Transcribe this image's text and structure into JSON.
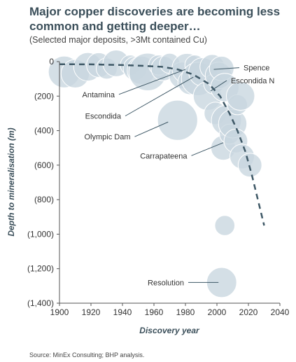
{
  "header": {
    "title": "Major copper discoveries are becoming less common and getting deeper…",
    "subtitle": "(Selected major deposits, >3Mt contained Cu)"
  },
  "footer": {
    "source": "Source: MinEx Consulting; BHP analysis."
  },
  "chart_data": {
    "type": "scatter",
    "xlabel": "Discovery year",
    "ylabel": "Depth to mineralisation (m)",
    "xlim": [
      1900,
      2040
    ],
    "ylim": [
      0,
      1400
    ],
    "y_inverted": true,
    "grid": false,
    "legend": "none",
    "x_ticks": [
      {
        "value": 1900,
        "label": "1900"
      },
      {
        "value": 1920,
        "label": "1920"
      },
      {
        "value": 1940,
        "label": "1940"
      },
      {
        "value": 1960,
        "label": "1960"
      },
      {
        "value": 1980,
        "label": "1980"
      },
      {
        "value": 2000,
        "label": "2000"
      },
      {
        "value": 2020,
        "label": "2020"
      },
      {
        "value": 2040,
        "label": "2040"
      }
    ],
    "y_ticks": [
      {
        "value": 0,
        "label": "0"
      },
      {
        "value": 200,
        "label": "(200)"
      },
      {
        "value": 400,
        "label": "(400)"
      },
      {
        "value": 600,
        "label": "(600)"
      },
      {
        "value": 800,
        "label": "(800)"
      },
      {
        "value": 1000,
        "label": "(1,000)"
      },
      {
        "value": 1200,
        "label": "(1,200)"
      },
      {
        "value": 1400,
        "label": "(1,400)"
      }
    ],
    "colors": {
      "bubble": "#c8d6df",
      "trend": "#3e5866",
      "axis": "#555555",
      "label": "#333333"
    },
    "points": [
      {
        "x": 1903,
        "y": 60,
        "size": 50
      },
      {
        "x": 1910,
        "y": 70,
        "size": 40
      },
      {
        "x": 1918,
        "y": 30,
        "size": 40
      },
      {
        "x": 1925,
        "y": 20,
        "size": 30
      },
      {
        "x": 1930,
        "y": 40,
        "size": 22
      },
      {
        "x": 1936,
        "y": 10,
        "size": 35
      },
      {
        "x": 1945,
        "y": 20,
        "size": 20
      },
      {
        "x": 1948,
        "y": 40,
        "size": 28
      },
      {
        "x": 1952,
        "y": 50,
        "size": 40
      },
      {
        "x": 1956,
        "y": 60,
        "size": 70
      },
      {
        "x": 1963,
        "y": 20,
        "size": 20
      },
      {
        "x": 1966,
        "y": 40,
        "size": 30
      },
      {
        "x": 1970,
        "y": 10,
        "size": 20
      },
      {
        "x": 1975,
        "y": 340,
        "size": 80
      },
      {
        "x": 1978,
        "y": 80,
        "size": 35
      },
      {
        "x": 1981,
        "y": 40,
        "size": 45
      },
      {
        "x": 1983,
        "y": 120,
        "size": 30
      },
      {
        "x": 1986,
        "y": 20,
        "size": 20
      },
      {
        "x": 1988,
        "y": 100,
        "size": 55
      },
      {
        "x": 1991,
        "y": 60,
        "size": 40
      },
      {
        "x": 1994,
        "y": 200,
        "size": 40
      },
      {
        "x": 1997,
        "y": 30,
        "size": 30
      },
      {
        "x": 1998,
        "y": 130,
        "size": 20
      },
      {
        "x": 1999,
        "y": 300,
        "size": 25
      },
      {
        "x": 2001,
        "y": 80,
        "size": 35
      },
      {
        "x": 2003,
        "y": 40,
        "size": 30
      },
      {
        "x": 2005,
        "y": 150,
        "size": 40
      },
      {
        "x": 2006,
        "y": 340,
        "size": 45
      },
      {
        "x": 2004,
        "y": 500,
        "size": 30
      },
      {
        "x": 2008,
        "y": 420,
        "size": 20
      },
      {
        "x": 2010,
        "y": 360,
        "size": 40
      },
      {
        "x": 2012,
        "y": 460,
        "size": 28
      },
      {
        "x": 2013,
        "y": 250,
        "size": 20
      },
      {
        "x": 2015,
        "y": 200,
        "size": 40
      },
      {
        "x": 2016,
        "y": 550,
        "size": 30
      },
      {
        "x": 2021,
        "y": 600,
        "size": 28
      },
      {
        "x": 2005,
        "y": 950,
        "size": 20
      },
      {
        "x": 2003,
        "y": 1280,
        "size": 45
      }
    ],
    "trend": [
      {
        "x": 1900,
        "y": 15
      },
      {
        "x": 1920,
        "y": 16
      },
      {
        "x": 1940,
        "y": 20
      },
      {
        "x": 1955,
        "y": 25
      },
      {
        "x": 1965,
        "y": 30
      },
      {
        "x": 1975,
        "y": 45
      },
      {
        "x": 1985,
        "y": 75
      },
      {
        "x": 1995,
        "y": 130
      },
      {
        "x": 2002,
        "y": 200
      },
      {
        "x": 2008,
        "y": 300
      },
      {
        "x": 2013,
        "y": 400
      },
      {
        "x": 2018,
        "y": 520
      },
      {
        "x": 2022,
        "y": 650
      },
      {
        "x": 2026,
        "y": 800
      },
      {
        "x": 2030,
        "y": 950
      }
    ],
    "annotations": [
      {
        "text": "Spence",
        "x": 1998,
        "y": 45,
        "label_anchor": "start",
        "label_x": 2016,
        "label_y": 35
      },
      {
        "text": "Escondida N",
        "x": 1996,
        "y": 170,
        "label_anchor": "start",
        "label_x": 2008,
        "label_y": 110
      },
      {
        "text": "Antamina",
        "x": 1980,
        "y": 45,
        "label_anchor": "end",
        "label_x": 1936,
        "label_y": 190
      },
      {
        "text": "Escondida",
        "x": 1985,
        "y": 90,
        "label_anchor": "end",
        "label_x": 1940,
        "label_y": 315
      },
      {
        "text": "Olympic Dam",
        "x": 1969,
        "y": 350,
        "label_anchor": "end",
        "label_x": 1946,
        "label_y": 435
      },
      {
        "text": "Carrapateena",
        "x": 2004,
        "y": 470,
        "label_anchor": "end",
        "label_x": 1982,
        "label_y": 545
      },
      {
        "text": "Resolution",
        "x": 2001,
        "y": 1280,
        "label_anchor": "end",
        "label_x": 1980,
        "label_y": 1280
      }
    ]
  }
}
